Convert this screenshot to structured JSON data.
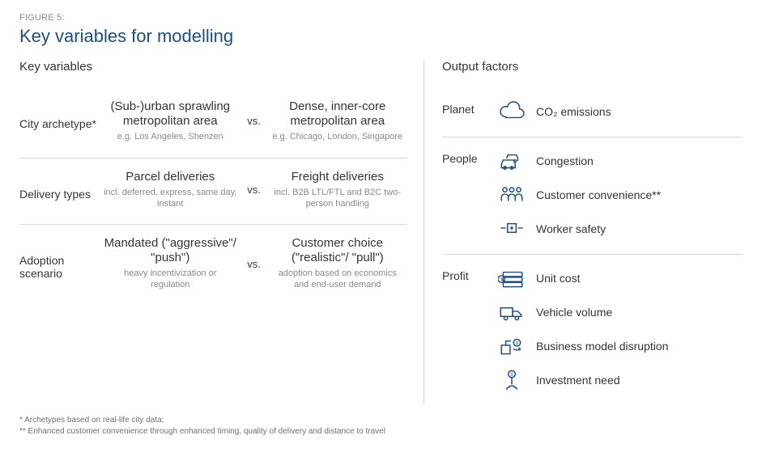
{
  "figure_label": "FIGURE 5:",
  "figure_title": "Key variables for modelling",
  "left": {
    "heading": "Key variables",
    "rows": [
      {
        "label": "City archetype*",
        "left_title": "(Sub-)urban sprawling metropolitan area",
        "left_sub": "e.g. Los Angeles, Shenzen",
        "vs": "vs.",
        "right_title": "Dense, inner-core metropolitan area",
        "right_sub": "e.g. Chicago, London, Singapore"
      },
      {
        "label": "Delivery types",
        "left_title": "Parcel deliveries",
        "left_sub": "incl. deferred, express, same day, instant",
        "vs": "vs.",
        "right_title": "Freight deliveries",
        "right_sub": "incl. B2B LTL/FTL and B2C two-person handling"
      },
      {
        "label": "Adoption scenario",
        "left_title": "Mandated (\"aggressive\"/ \"push\")",
        "left_sub": "heavy incentivization or regulation",
        "vs": "vs.",
        "right_title": "Customer choice (\"realistic\"/ \"pull\")",
        "right_sub": "adoption based on economics and end-user demand"
      }
    ]
  },
  "right": {
    "heading": "Output factors",
    "blocks": [
      {
        "label": "Planet",
        "items": [
          {
            "icon": "cloud",
            "text": "CO₂ emissions"
          }
        ]
      },
      {
        "label": "People",
        "items": [
          {
            "icon": "cars",
            "text": "Congestion"
          },
          {
            "icon": "people",
            "text": "Customer convenience**"
          },
          {
            "icon": "safety",
            "text": "Worker safety"
          }
        ]
      },
      {
        "label": "Profit",
        "items": [
          {
            "icon": "money-stack",
            "text": "Unit cost"
          },
          {
            "icon": "truck",
            "text": "Vehicle volume"
          },
          {
            "icon": "disruption",
            "text": "Business model disruption"
          },
          {
            "icon": "invest",
            "text": "Investment need"
          }
        ]
      }
    ]
  },
  "footnotes": [
    "* Archetypes based on real-life city data;",
    "** Enhanced customer convenience through enhanced timing, quality of delivery and distance to travel"
  ],
  "colors": {
    "accent": "#1a4e8a",
    "text": "#333333",
    "muted": "#888888",
    "rule": "#d9d9d9",
    "background": "#ffffff"
  }
}
